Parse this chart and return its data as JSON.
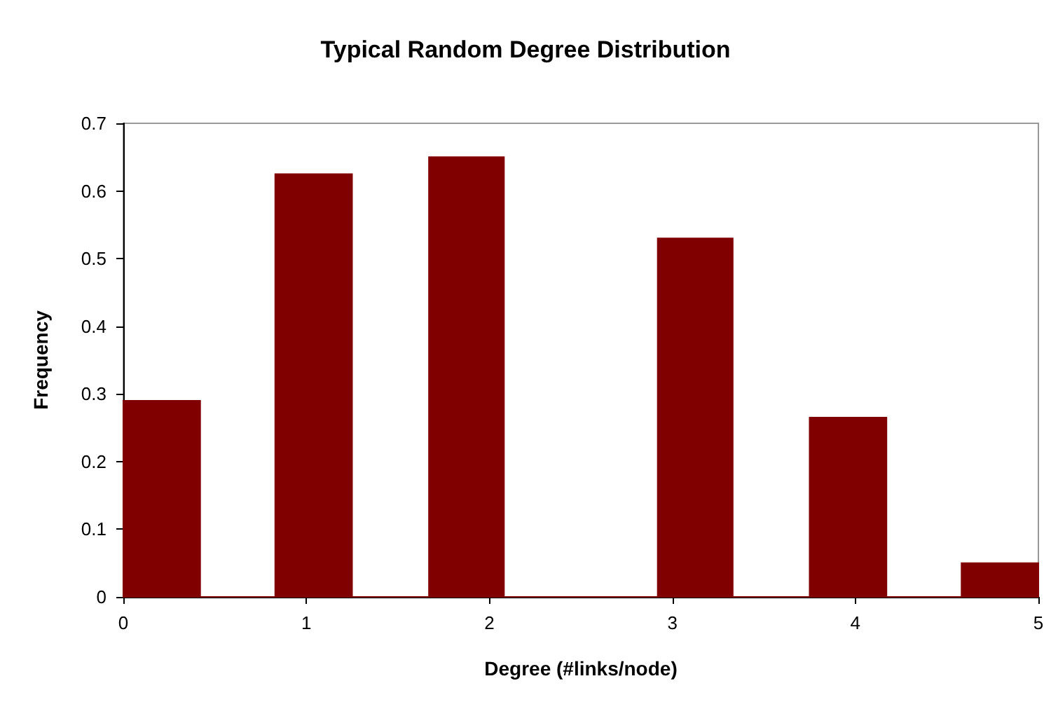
{
  "chart_data": {
    "type": "histogram",
    "title": "Typical Random Degree Distribution",
    "xlabel": "Degree (#links/node)",
    "ylabel": "Frequency",
    "bins": [
      0,
      0.42,
      0.83,
      1.25,
      1.67,
      2.08,
      2.5,
      2.92,
      3.33,
      3.75,
      4.17,
      4.58,
      5
    ],
    "values": [
      0.29,
      0,
      0.625,
      0,
      0.65,
      0,
      0,
      0.53,
      0,
      0.265,
      0,
      0.05
    ],
    "color": "#800000",
    "xlim": [
      0,
      5
    ],
    "xticks": [
      0,
      1,
      2,
      3,
      4,
      5
    ],
    "ylim": [
      0,
      0.7
    ],
    "yticks": [
      0,
      0.1,
      0.2,
      0.3,
      0.4,
      0.5,
      0.6,
      0.7
    ],
    "grid": false
  }
}
